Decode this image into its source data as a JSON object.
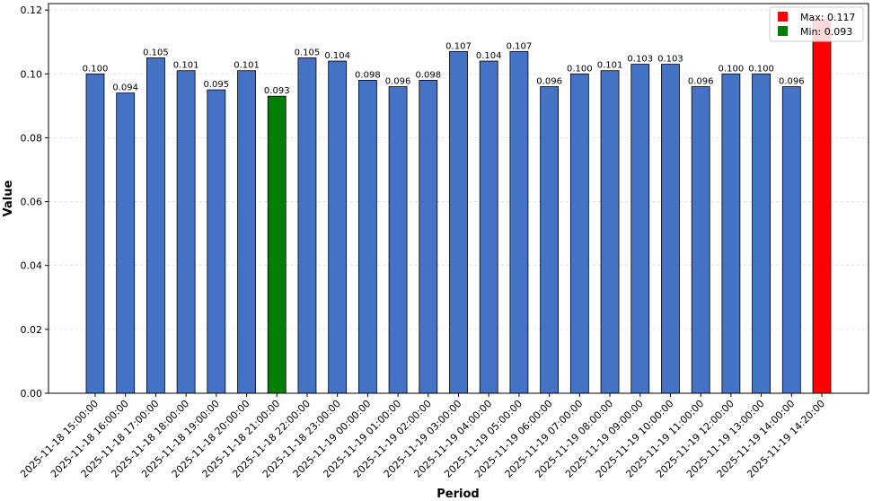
{
  "chart_data": {
    "type": "bar",
    "xlabel": "Period",
    "ylabel": "Value",
    "ylim": [
      0,
      0.122
    ],
    "yticks": [
      "0.00",
      "0.02",
      "0.04",
      "0.06",
      "0.08",
      "0.10",
      "0.12"
    ],
    "grid": "horizontal dashed",
    "legend_position": "top-right",
    "colors": {
      "default": "#4472c4",
      "max": "#ff0000",
      "min": "#008000"
    },
    "categories": [
      "2025-11-18 15:00:00",
      "2025-11-18 16:00:00",
      "2025-11-18 17:00:00",
      "2025-11-18 18:00:00",
      "2025-11-18 19:00:00",
      "2025-11-18 20:00:00",
      "2025-11-18 21:00:00",
      "2025-11-18 22:00:00",
      "2025-11-18 23:00:00",
      "2025-11-19 00:00:00",
      "2025-11-19 01:00:00",
      "2025-11-19 02:00:00",
      "2025-11-19 03:00:00",
      "2025-11-19 04:00:00",
      "2025-11-19 05:00:00",
      "2025-11-19 06:00:00",
      "2025-11-19 07:00:00",
      "2025-11-19 08:00:00",
      "2025-11-19 09:00:00",
      "2025-11-19 10:00:00",
      "2025-11-19 11:00:00",
      "2025-11-19 12:00:00",
      "2025-11-19 13:00:00",
      "2025-11-19 14:00:00",
      "2025-11-19 14:20:00"
    ],
    "values": [
      0.1,
      0.094,
      0.105,
      0.101,
      0.095,
      0.101,
      0.093,
      0.105,
      0.104,
      0.098,
      0.096,
      0.098,
      0.107,
      0.104,
      0.107,
      0.096,
      0.1,
      0.101,
      0.103,
      0.103,
      0.096,
      0.1,
      0.1,
      0.096,
      0.117
    ],
    "value_labels": [
      "0.100",
      "0.094",
      "0.105",
      "0.101",
      "0.095",
      "0.101",
      "0.093",
      "0.105",
      "0.104",
      "0.098",
      "0.096",
      "0.098",
      "0.107",
      "0.104",
      "0.107",
      "0.096",
      "0.100",
      "0.101",
      "0.103",
      "0.103",
      "0.096",
      "0.100",
      "0.100",
      "0.096",
      ""
    ],
    "highlight": [
      "",
      "",
      "",
      "",
      "",
      "",
      "min",
      "",
      "",
      "",
      "",
      "",
      "",
      "",
      "",
      "",
      "",
      "",
      "",
      "",
      "",
      "",
      "",
      "",
      "max"
    ],
    "legend": [
      {
        "key": "max",
        "label": "Max: 0.117"
      },
      {
        "key": "min",
        "label": "Min: 0.093"
      }
    ]
  }
}
